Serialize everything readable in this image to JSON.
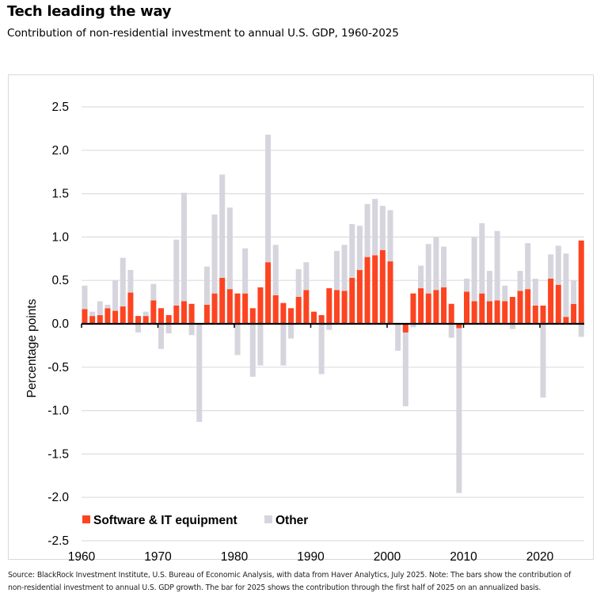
{
  "header": {
    "title": "Tech leading the way",
    "subtitle": "Contribution of non-residential investment to annual U.S. GDP, 1960-2025"
  },
  "footer": {
    "note": "Source: BlackRock Investment Institute, U.S. Bureau of Economic Analysis, with data from Haver Analytics, July 2025. Note: The bars show the contribution of non-residential investment to annual U.S. GDP growth. The bar for 2025 shows the contribution through the first half of 2025 on an annualized basis."
  },
  "colors": {
    "software": "#fc4421",
    "other": "#d6d5de",
    "grid": "#dddddd",
    "axis": "#000000"
  },
  "chart_data": {
    "type": "bar",
    "stacked": true,
    "title": "Tech leading the way",
    "subtitle": "Contribution of non-residential investment to annual U.S. GDP, 1960-2025",
    "xlabel": "",
    "ylabel": "Percentage points",
    "ylim": [
      -2.5,
      2.5
    ],
    "yticks": [
      2.5,
      2.0,
      1.5,
      1.0,
      0.5,
      0.0,
      -0.5,
      -1.0,
      -1.5,
      -2.0,
      -2.5
    ],
    "ytick_labels": [
      "2.5",
      "2.0",
      "1.5",
      "1.0",
      "0.5",
      "0.0",
      "-0.5",
      "-1.0",
      "-1.5",
      "-2.0",
      "-2.5"
    ],
    "xticks": [
      1960,
      1970,
      1980,
      1990,
      2000,
      2010,
      2020
    ],
    "xtick_labels": [
      "1960",
      "1970",
      "1980",
      "1990",
      "2000",
      "2010",
      "2020"
    ],
    "grid": true,
    "legend": {
      "position": "bottom-left",
      "entries": [
        "Software & IT equipment",
        "Other"
      ]
    },
    "x": [
      1960,
      1961,
      1962,
      1963,
      1964,
      1965,
      1966,
      1967,
      1968,
      1969,
      1970,
      1971,
      1972,
      1973,
      1974,
      1975,
      1976,
      1977,
      1978,
      1979,
      1980,
      1981,
      1982,
      1983,
      1984,
      1985,
      1986,
      1987,
      1988,
      1989,
      1990,
      1991,
      1992,
      1993,
      1994,
      1995,
      1996,
      1997,
      1998,
      1999,
      2000,
      2001,
      2002,
      2003,
      2004,
      2005,
      2006,
      2007,
      2008,
      2009,
      2010,
      2011,
      2012,
      2013,
      2014,
      2015,
      2016,
      2017,
      2018,
      2019,
      2020,
      2021,
      2022,
      2023,
      2024,
      2025
    ],
    "series": [
      {
        "name": "Software & IT equipment",
        "values": [
          0.17,
          0.09,
          0.1,
          0.18,
          0.15,
          0.2,
          0.36,
          0.09,
          0.09,
          0.27,
          0.18,
          0.1,
          0.21,
          0.26,
          0.23,
          0.0,
          0.22,
          0.35,
          0.53,
          0.4,
          0.35,
          0.35,
          0.18,
          0.42,
          0.71,
          0.33,
          0.24,
          0.18,
          0.31,
          0.39,
          0.14,
          0.1,
          0.41,
          0.39,
          0.38,
          0.53,
          0.62,
          0.77,
          0.79,
          0.85,
          0.72,
          0.0,
          -0.1,
          0.35,
          0.41,
          0.35,
          0.39,
          0.42,
          0.23,
          -0.05,
          0.37,
          0.26,
          0.35,
          0.26,
          0.27,
          0.26,
          0.31,
          0.38,
          0.4,
          0.21,
          0.21,
          0.52,
          0.45,
          0.08,
          0.23,
          0.96
        ]
      },
      {
        "name": "Other",
        "values": [
          0.27,
          0.05,
          0.16,
          0.04,
          0.35,
          0.56,
          0.26,
          -0.1,
          0.05,
          0.19,
          -0.29,
          -0.11,
          0.76,
          1.25,
          -0.13,
          -1.13,
          0.44,
          0.91,
          1.19,
          0.94,
          -0.36,
          0.52,
          -0.61,
          -0.48,
          1.47,
          0.58,
          -0.48,
          -0.17,
          0.32,
          0.32,
          0.0,
          -0.58,
          -0.07,
          0.45,
          0.53,
          0.62,
          0.51,
          0.61,
          0.65,
          0.51,
          0.59,
          -0.31,
          -0.85,
          -0.04,
          0.26,
          0.57,
          0.61,
          0.47,
          -0.16,
          -1.9,
          0.15,
          0.74,
          0.81,
          0.35,
          0.8,
          0.18,
          -0.06,
          0.23,
          0.53,
          0.31,
          -0.85,
          0.28,
          0.45,
          0.73,
          0.27,
          -0.15
        ]
      }
    ]
  }
}
